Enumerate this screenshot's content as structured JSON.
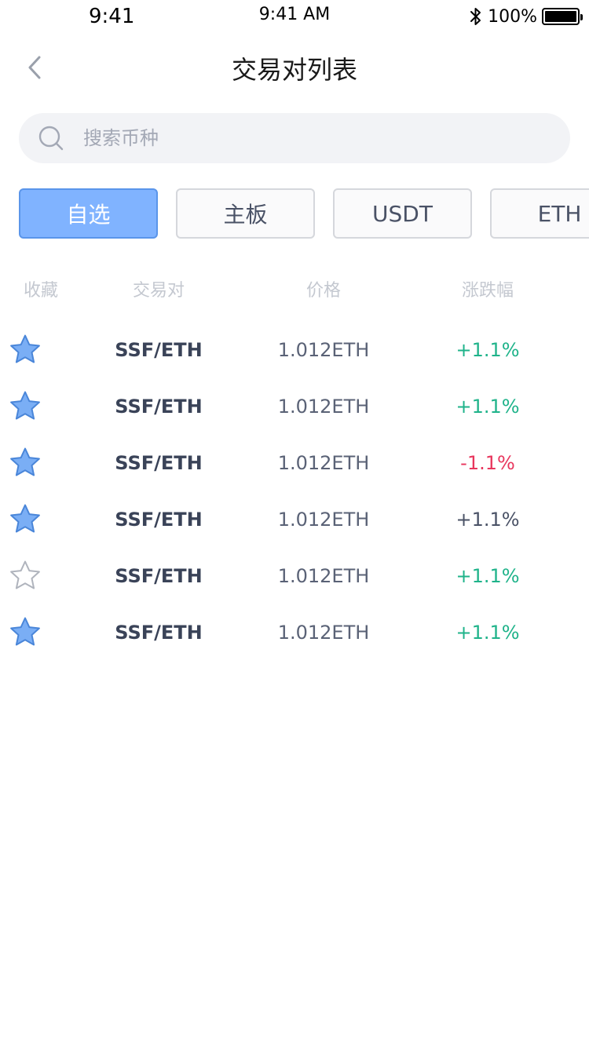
{
  "status_bar": {
    "time_left": "9:41",
    "time_center": "9:41 AM",
    "battery_text": "100%",
    "battery_level": 100
  },
  "nav": {
    "title": "交易对列表"
  },
  "search": {
    "placeholder": "搜索币种",
    "value": ""
  },
  "tabs": [
    {
      "label": "自选",
      "active": true
    },
    {
      "label": "主板",
      "active": false
    },
    {
      "label": "USDT",
      "active": false
    },
    {
      "label": "ETH",
      "active": false
    }
  ],
  "table": {
    "headers": {
      "favorite": "收藏",
      "pair": "交易对",
      "price": "价格",
      "change": "涨跌幅"
    },
    "rows": [
      {
        "favorited": true,
        "pair": "SSF/ETH",
        "price": "1.012ETH",
        "change": "+1.1%",
        "trend": "up"
      },
      {
        "favorited": true,
        "pair": "SSF/ETH",
        "price": "1.012ETH",
        "change": "+1.1%",
        "trend": "up"
      },
      {
        "favorited": true,
        "pair": "SSF/ETH",
        "price": "1.012ETH",
        "change": "-1.1%",
        "trend": "down"
      },
      {
        "favorited": true,
        "pair": "SSF/ETH",
        "price": "1.012ETH",
        "change": "+1.1%",
        "trend": "flat"
      },
      {
        "favorited": false,
        "pair": "SSF/ETH",
        "price": "1.012ETH",
        "change": "+1.1%",
        "trend": "up"
      },
      {
        "favorited": true,
        "pair": "SSF/ETH",
        "price": "1.012ETH",
        "change": "+1.1%",
        "trend": "up"
      }
    ]
  },
  "colors": {
    "accent": "#80b3ff",
    "accent_border": "#5a95ea",
    "up": "#1fb38a",
    "down": "#e8365d",
    "flat": "#4a5266",
    "star_fill": "#7aaef5",
    "star_stroke": "#4a86d9",
    "star_empty_stroke": "#b0b4bd"
  },
  "icons": {
    "back": "chevron-left-icon",
    "search": "search-icon",
    "bluetooth": "bluetooth-icon",
    "battery": "battery-icon",
    "favorite": "star-icon"
  }
}
